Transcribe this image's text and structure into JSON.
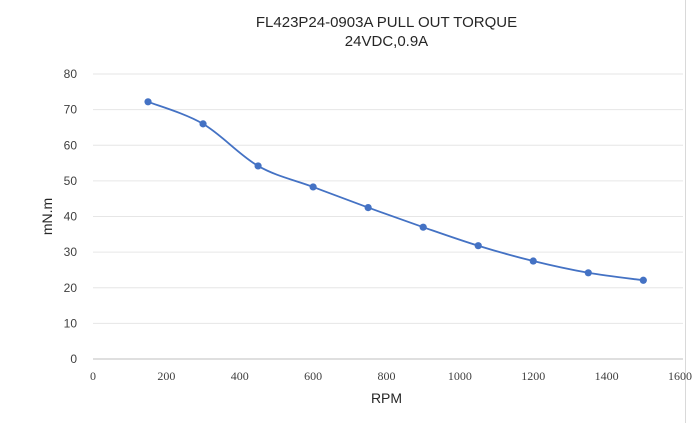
{
  "chart_data": {
    "type": "line",
    "title": "FL423P24-0903A PULL OUT TORQUE",
    "subtitle": "24VDC,0.9A",
    "xlabel": "RPM",
    "ylabel": "mN.m",
    "xlim": [
      0,
      1600
    ],
    "ylim": [
      0,
      80
    ],
    "xticks": [
      0,
      200,
      400,
      600,
      800,
      1000,
      1200,
      1400,
      1600
    ],
    "yticks": [
      0,
      10,
      20,
      30,
      40,
      50,
      60,
      70,
      80
    ],
    "xtick_labels": [
      "0",
      "200",
      "400",
      "600",
      "800",
      "1000",
      "1200",
      "1400",
      "1600"
    ],
    "ytick_labels": [
      "0",
      "10",
      "20",
      "30",
      "40",
      "50",
      "60",
      "70",
      "80"
    ],
    "grid": "horizontal",
    "legend": "none",
    "series": [
      {
        "color": "#4472c4",
        "x": [
          150,
          300,
          450,
          600,
          750,
          900,
          1050,
          1200,
          1350,
          1500
        ],
        "y": [
          72.2,
          66,
          54.2,
          48.3,
          42.5,
          37,
          31.8,
          27.5,
          24.2,
          22.1
        ]
      }
    ]
  }
}
